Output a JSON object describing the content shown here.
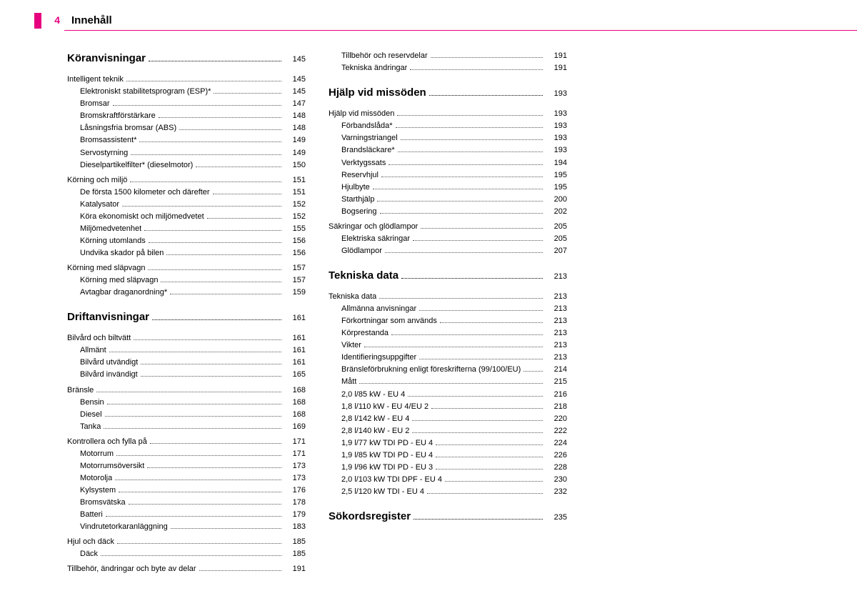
{
  "page": {
    "number": "4",
    "title": "Innehåll",
    "accent_color": "#e6007e"
  },
  "toc": [
    {
      "level": 1,
      "label": "Köranvisningar",
      "page": "145"
    },
    {
      "level": 2,
      "label": "Intelligent teknik",
      "page": "145"
    },
    {
      "level": 3,
      "label": "Elektroniskt stabilitetsprogram (ESP)*",
      "page": "145"
    },
    {
      "level": 3,
      "label": "Bromsar",
      "page": "147"
    },
    {
      "level": 3,
      "label": "Bromskraftförstärkare",
      "page": "148"
    },
    {
      "level": 3,
      "label": "Låsningsfria bromsar (ABS)",
      "page": "148"
    },
    {
      "level": 3,
      "label": "Bromsassistent*",
      "page": "149"
    },
    {
      "level": 3,
      "label": "Servostyrning",
      "page": "149"
    },
    {
      "level": 3,
      "label": "Dieselpartikelfilter* (dieselmotor)",
      "page": "150"
    },
    {
      "level": 2,
      "label": "Körning och miljö",
      "page": "151"
    },
    {
      "level": 3,
      "label": "De första 1500 kilometer och därefter",
      "page": "151"
    },
    {
      "level": 3,
      "label": "Katalysator",
      "page": "152"
    },
    {
      "level": 3,
      "label": "Köra ekonomiskt och miljömedvetet",
      "page": "152"
    },
    {
      "level": 3,
      "label": "Miljömedvetenhet",
      "page": "155"
    },
    {
      "level": 3,
      "label": "Körning utomlands",
      "page": "156"
    },
    {
      "level": 3,
      "label": "Undvika skador på bilen",
      "page": "156"
    },
    {
      "level": 2,
      "label": "Körning med släpvagn",
      "page": "157"
    },
    {
      "level": 3,
      "label": "Körning med släpvagn",
      "page": "157"
    },
    {
      "level": 3,
      "label": "Avtagbar draganordning*",
      "page": "159"
    },
    {
      "level": 1,
      "label": "Driftanvisningar",
      "page": "161"
    },
    {
      "level": 2,
      "label": "Bilvård och biltvätt",
      "page": "161"
    },
    {
      "level": 3,
      "label": "Allmänt",
      "page": "161"
    },
    {
      "level": 3,
      "label": "Bilvård utvändigt",
      "page": "161"
    },
    {
      "level": 3,
      "label": "Bilvård invändigt",
      "page": "165"
    },
    {
      "level": 2,
      "label": "Bränsle",
      "page": "168"
    },
    {
      "level": 3,
      "label": "Bensin",
      "page": "168"
    },
    {
      "level": 3,
      "label": "Diesel",
      "page": "168"
    },
    {
      "level": 3,
      "label": "Tanka",
      "page": "169"
    },
    {
      "level": 2,
      "label": "Kontrollera och fylla på",
      "page": "171"
    },
    {
      "level": 3,
      "label": "Motorrum",
      "page": "171"
    },
    {
      "level": 3,
      "label": "Motorrumsöversikt",
      "page": "173"
    },
    {
      "level": 3,
      "label": "Motorolja",
      "page": "173"
    },
    {
      "level": 3,
      "label": "Kylsystem",
      "page": "176"
    },
    {
      "level": 3,
      "label": "Bromsvätska",
      "page": "178"
    },
    {
      "level": 3,
      "label": "Batteri",
      "page": "179"
    },
    {
      "level": 3,
      "label": "Vindrutetorkaranläggning",
      "page": "183"
    },
    {
      "level": 2,
      "label": "Hjul och däck",
      "page": "185"
    },
    {
      "level": 3,
      "label": "Däck",
      "page": "185"
    },
    {
      "level": 2,
      "label": "Tillbehör, ändringar och byte av delar",
      "page": "191"
    },
    {
      "level": 3,
      "label": "Tillbehör och reservdelar",
      "page": "191"
    },
    {
      "level": 3,
      "label": "Tekniska ändringar",
      "page": "191"
    },
    {
      "level": 1,
      "label": "Hjälp vid missöden",
      "page": "193"
    },
    {
      "level": 2,
      "label": "Hjälp vid missöden",
      "page": "193"
    },
    {
      "level": 3,
      "label": "Förbandslåda*",
      "page": "193"
    },
    {
      "level": 3,
      "label": "Varningstriangel",
      "page": "193"
    },
    {
      "level": 3,
      "label": "Brandsläckare*",
      "page": "193"
    },
    {
      "level": 3,
      "label": "Verktygssats",
      "page": "194"
    },
    {
      "level": 3,
      "label": "Reservhjul",
      "page": "195"
    },
    {
      "level": 3,
      "label": "Hjulbyte",
      "page": "195"
    },
    {
      "level": 3,
      "label": "Starthjälp",
      "page": "200"
    },
    {
      "level": 3,
      "label": "Bogsering",
      "page": "202"
    },
    {
      "level": 2,
      "label": "Säkringar och glödlampor",
      "page": "205"
    },
    {
      "level": 3,
      "label": "Elektriska säkringar",
      "page": "205"
    },
    {
      "level": 3,
      "label": "Glödlampor",
      "page": "207"
    },
    {
      "level": 1,
      "label": "Tekniska data",
      "page": "213"
    },
    {
      "level": 2,
      "label": "Tekniska data",
      "page": "213"
    },
    {
      "level": 3,
      "label": "Allmänna anvisningar",
      "page": "213"
    },
    {
      "level": 3,
      "label": "Förkortningar som används",
      "page": "213"
    },
    {
      "level": 3,
      "label": "Körprestanda",
      "page": "213"
    },
    {
      "level": 3,
      "label": "Vikter",
      "page": "213"
    },
    {
      "level": 3,
      "label": "Identifieringsuppgifter",
      "page": "213"
    },
    {
      "level": 3,
      "label": "Bränsleförbrukning enligt föreskrifterna (99/100/EU)",
      "page": "214"
    },
    {
      "level": 3,
      "label": "Mått",
      "page": "215"
    },
    {
      "level": 3,
      "label": "2,0 l/85 kW - EU 4",
      "page": "216"
    },
    {
      "level": 3,
      "label": "1,8 l/110 kW - EU 4/EU 2",
      "page": "218"
    },
    {
      "level": 3,
      "label": "2,8 l/142 kW - EU 4",
      "page": "220"
    },
    {
      "level": 3,
      "label": "2,8 l/140 kW - EU 2",
      "page": "222"
    },
    {
      "level": 3,
      "label": "1,9 l/77 kW TDI PD - EU 4",
      "page": "224"
    },
    {
      "level": 3,
      "label": "1,9 l/85 kW TDI PD - EU 4",
      "page": "226"
    },
    {
      "level": 3,
      "label": "1,9 l/96 kW TDI PD - EU 3",
      "page": "228"
    },
    {
      "level": 3,
      "label": "2,0 l/103 kW TDI DPF - EU 4",
      "page": "230"
    },
    {
      "level": 3,
      "label": "2,5 l/120 kW TDI - EU 4",
      "page": "232"
    },
    {
      "level": 1,
      "label": "Sökordsregister",
      "page": "235"
    }
  ]
}
